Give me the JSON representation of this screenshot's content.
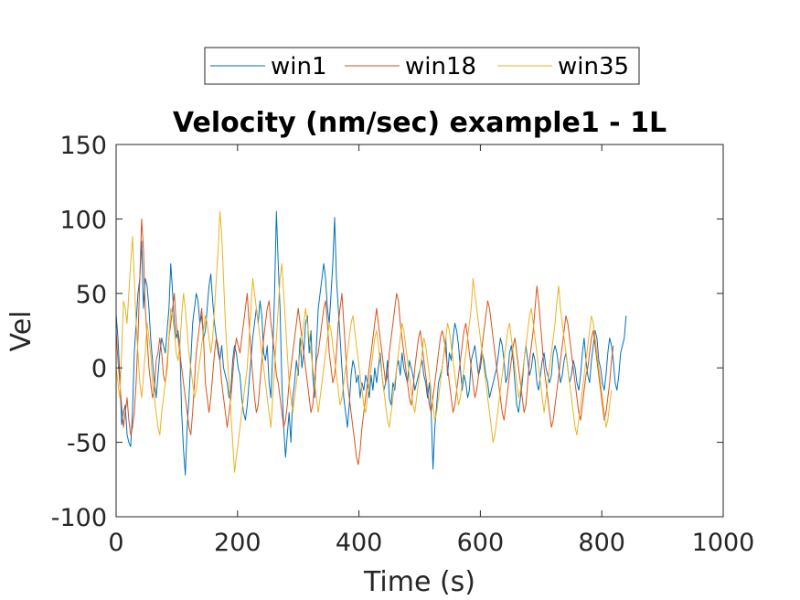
{
  "chart_data": {
    "type": "line",
    "title": "Velocity (nm/sec) example1 - 1L",
    "xlabel": "Time (s)",
    "ylabel": "Vel",
    "xlim": [
      0,
      1000
    ],
    "ylim": [
      -100,
      150
    ],
    "xticks": [
      0,
      200,
      400,
      600,
      800,
      1000
    ],
    "xtick_labels": [
      "0",
      "200",
      "400",
      "600",
      "800",
      "1000"
    ],
    "yticks": [
      -100,
      -50,
      0,
      50,
      100,
      150
    ],
    "ytick_labels": [
      "-100",
      "-50",
      "0",
      "50",
      "100",
      "150"
    ],
    "grid": false,
    "legend_position": "top-outside",
    "x_step": 3,
    "series": [
      {
        "name": "win1",
        "color": "#0072BD",
        "values": [
          36,
          20,
          -5,
          -38,
          -30,
          -25,
          -45,
          -50,
          -53,
          -30,
          10,
          30,
          50,
          60,
          85,
          40,
          60,
          55,
          40,
          20,
          5,
          -10,
          -20,
          -5,
          10,
          20,
          15,
          10,
          25,
          40,
          70,
          50,
          30,
          20,
          25,
          15,
          -30,
          -55,
          -72,
          -40,
          -20,
          5,
          30,
          40,
          50,
          45,
          30,
          35,
          20,
          25,
          40,
          55,
          63,
          45,
          30,
          20,
          10,
          5,
          15,
          0,
          -5,
          -10,
          -20,
          -15,
          5,
          15,
          10,
          0,
          -5,
          -20,
          -30,
          -35,
          -25,
          -10,
          5,
          20,
          30,
          40,
          30,
          45,
          35,
          10,
          5,
          15,
          -10,
          -20,
          10,
          50,
          105,
          70,
          40,
          -10,
          -40,
          -60,
          -45,
          -30,
          -50,
          -20,
          -10,
          5,
          -5,
          20,
          0,
          10,
          30,
          35,
          10,
          25,
          -5,
          -20,
          15,
          40,
          50,
          60,
          70,
          60,
          40,
          30,
          50,
          70,
          101,
          60,
          40,
          20,
          0,
          -20,
          -30,
          -40,
          -25,
          -5,
          5,
          0,
          -10,
          -5,
          -20,
          -10,
          -15,
          -5,
          -10,
          -20,
          -5,
          -15,
          0,
          -10,
          0,
          10,
          -5,
          -15,
          -10,
          5,
          -20,
          -25,
          -10,
          -15,
          0,
          5,
          -5,
          10,
          0,
          -5,
          -10,
          5,
          0,
          -5,
          -15,
          -10,
          -5,
          0,
          5,
          -5,
          -10,
          -20,
          -10,
          -30,
          -68,
          -40,
          -25,
          -10,
          -5,
          0,
          10,
          20,
          -5,
          10,
          5,
          20,
          30,
          25,
          15,
          0,
          -15,
          -5,
          -10,
          -20,
          -15,
          5,
          10,
          15,
          5,
          -5,
          0,
          10,
          5,
          -5,
          -10,
          -20,
          -15,
          -10,
          -5,
          0,
          10,
          20,
          15,
          5,
          -10,
          -5,
          10,
          15,
          5,
          -10,
          -25,
          -30,
          -20,
          -10,
          5,
          15,
          5,
          -5,
          0,
          10,
          5,
          -10,
          -15,
          -5,
          5,
          10,
          0,
          -5,
          -10,
          -5,
          10,
          15,
          10,
          0,
          -10,
          -5,
          5,
          10,
          0,
          -10,
          -5,
          5,
          0,
          -10,
          -15,
          -5,
          10,
          20,
          5,
          -5,
          -10,
          5,
          15,
          25,
          20,
          5,
          0,
          -10,
          -15,
          -5,
          10,
          20,
          15,
          5,
          -10,
          -15,
          -5,
          10,
          15,
          20,
          35
        ]
      },
      {
        "name": "win18",
        "color": "#D95319",
        "values": [
          25,
          5,
          -10,
          -25,
          -40,
          -30,
          -20,
          -35,
          -45,
          -40,
          -30,
          -10,
          20,
          60,
          100,
          80,
          40,
          20,
          0,
          -10,
          -20,
          -15,
          5,
          10,
          20,
          10,
          -5,
          -10,
          0,
          20,
          30,
          40,
          50,
          30,
          20,
          10,
          0,
          -10,
          -20,
          -30,
          -40,
          -45,
          -30,
          -10,
          10,
          20,
          30,
          40,
          20,
          -10,
          -20,
          -30,
          -20,
          -5,
          10,
          20,
          15,
          5,
          -10,
          -20,
          -30,
          -40,
          -30,
          -20,
          -5,
          10,
          20,
          15,
          10,
          20,
          30,
          40,
          50,
          30,
          10,
          -5,
          -20,
          -30,
          -25,
          -10,
          5,
          20,
          30,
          40,
          45,
          30,
          20,
          10,
          -5,
          -10,
          -20,
          -30,
          -40,
          -35,
          -25,
          -10,
          0,
          10,
          20,
          30,
          40,
          30,
          20,
          10,
          0,
          -10,
          -20,
          -30,
          -25,
          -10,
          5,
          10,
          20,
          30,
          40,
          45,
          30,
          10,
          0,
          -10,
          -5,
          10,
          30,
          40,
          50,
          30,
          10,
          -10,
          -20,
          -30,
          -40,
          -50,
          -60,
          -65,
          -55,
          -40,
          -30,
          -20,
          -10,
          0,
          10,
          20,
          30,
          40,
          30,
          20,
          10,
          0,
          -10,
          -5,
          10,
          20,
          30,
          40,
          50,
          45,
          30,
          20,
          10,
          0,
          -10,
          -20,
          -25,
          -15,
          0,
          10,
          20,
          25,
          15,
          5,
          -5,
          -15,
          -25,
          -30,
          -20,
          -10,
          0,
          10,
          20,
          25,
          20,
          10,
          0,
          -10,
          -20,
          -30,
          -25,
          -15,
          -5,
          5,
          15,
          25,
          30,
          20,
          10,
          0,
          -10,
          -20,
          -15,
          -5,
          5,
          15,
          25,
          35,
          45,
          40,
          30,
          20,
          10,
          0,
          -10,
          -20,
          -30,
          -35,
          -25,
          -15,
          -5,
          5,
          15,
          20,
          10,
          0,
          -10,
          -20,
          -30,
          -25,
          -10,
          5,
          15,
          25,
          40,
          55,
          45,
          30,
          15,
          0,
          -10,
          -20,
          -30,
          -40,
          -35,
          -25,
          -15,
          -5,
          5,
          15,
          25,
          35,
          30,
          20,
          10,
          0,
          -10,
          -20,
          -30,
          -35,
          -25,
          -15,
          -5,
          0,
          10,
          20,
          25,
          15,
          5,
          -5,
          -15,
          -25,
          -35,
          -30,
          -20,
          -10,
          5,
          15
        ]
      },
      {
        "name": "win35",
        "color": "#EDB120",
        "values": [
          0,
          -10,
          -20,
          10,
          45,
          40,
          30,
          50,
          70,
          88,
          60,
          30,
          10,
          -10,
          -20,
          -5,
          10,
          30,
          20,
          10,
          -10,
          -20,
          -30,
          -40,
          -45,
          -30,
          -20,
          -10,
          5,
          20,
          40,
          35,
          25,
          10,
          5,
          15,
          35,
          50,
          40,
          25,
          10,
          0,
          -10,
          -20,
          -15,
          -5,
          5,
          15,
          25,
          35,
          30,
          20,
          10,
          20,
          40,
          60,
          80,
          105,
          90,
          60,
          30,
          10,
          -10,
          -30,
          -50,
          -70,
          -60,
          -50,
          -40,
          -30,
          -20,
          -10,
          0,
          20,
          40,
          60,
          50,
          40,
          30,
          20,
          10,
          0,
          -10,
          -20,
          -30,
          -40,
          -20,
          0,
          20,
          40,
          60,
          70,
          50,
          30,
          10,
          -10,
          -20,
          -30,
          -20,
          -10,
          0,
          10,
          20,
          30,
          40,
          30,
          20,
          10,
          0,
          -10,
          -20,
          -30,
          -20,
          -10,
          0,
          10,
          20,
          30,
          25,
          15,
          5,
          -5,
          -15,
          -25,
          -20,
          -10,
          0,
          10,
          20,
          30,
          35,
          25,
          15,
          5,
          -5,
          -15,
          -25,
          -30,
          -20,
          -10,
          0,
          10,
          20,
          25,
          15,
          5,
          -5,
          -15,
          -25,
          -35,
          -40,
          -30,
          -20,
          -10,
          0,
          10,
          20,
          30,
          25,
          15,
          5,
          -5,
          -15,
          -25,
          -30,
          -20,
          -10,
          0,
          10,
          20,
          15,
          5,
          -5,
          -15,
          -25,
          -35,
          -30,
          -20,
          -10,
          0,
          10,
          20,
          30,
          25,
          15,
          5,
          -5,
          -15,
          -25,
          -20,
          -10,
          0,
          10,
          20,
          30,
          40,
          60,
          50,
          40,
          30,
          20,
          10,
          0,
          -10,
          -20,
          -30,
          -40,
          -50,
          -45,
          -35,
          -25,
          -15,
          -5,
          5,
          15,
          25,
          30,
          20,
          10,
          0,
          -10,
          -20,
          -15,
          -5,
          5,
          15,
          25,
          35,
          40,
          30,
          20,
          10,
          0,
          -10,
          -20,
          -30,
          -20,
          -10,
          0,
          10,
          20,
          30,
          45,
          55,
          40,
          30,
          20,
          10,
          0,
          -10,
          -20,
          -30,
          -40,
          -45,
          -35,
          -25,
          -15,
          -5,
          5,
          15,
          25,
          35,
          30,
          20,
          10,
          0,
          -10,
          -20,
          -30,
          -40,
          -35,
          -25,
          -15
        ]
      }
    ]
  }
}
